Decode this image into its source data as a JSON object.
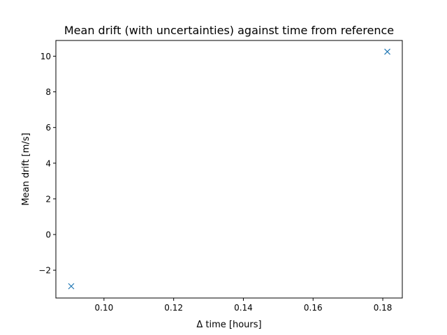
{
  "chart_data": {
    "type": "scatter",
    "title": "Mean drift (with uncertainties) against time from reference",
    "xlabel": "Δ time [hours]",
    "ylabel": "Mean drift [m/s]",
    "xlim": [
      0.0862,
      0.1856
    ],
    "ylim": [
      -3.56,
      10.88
    ],
    "x_ticks": [
      0.1,
      0.12,
      0.14,
      0.16,
      0.18
    ],
    "x_tick_labels": [
      "0.10",
      "0.12",
      "0.14",
      "0.16",
      "0.18"
    ],
    "y_ticks": [
      -2,
      0,
      2,
      4,
      6,
      8,
      10
    ],
    "y_tick_labels": [
      "−2",
      "0",
      "2",
      "4",
      "6",
      "8",
      "10"
    ],
    "series": [
      {
        "marker": "x",
        "color": "#1f77b4",
        "x": [
          0.0906,
          0.1813
        ],
        "y": [
          -2.9,
          10.25
        ]
      }
    ],
    "grid": false,
    "legend": "none"
  }
}
